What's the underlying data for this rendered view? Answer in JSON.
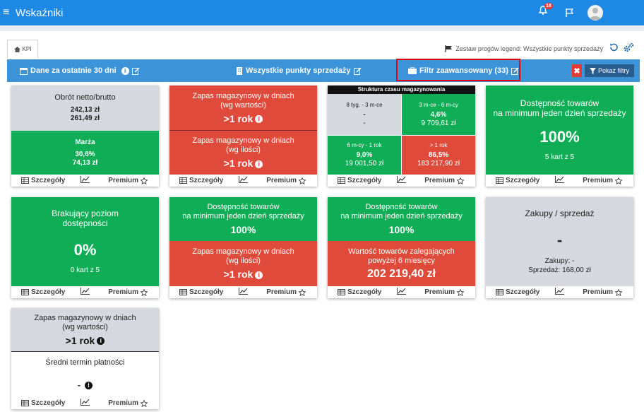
{
  "app": {
    "title": "Wskaźniki",
    "notifications": "18"
  },
  "tab": {
    "label": "KPI"
  },
  "legend": {
    "text": "Zestaw progów legend: Wszystkie punkty sprzedaży"
  },
  "filterbar": {
    "date": "Dane za ostatnie 30 dni",
    "points": "Wszystkie punkty sprzedaży",
    "advanced": "Filtr zaawansowany (33)",
    "show_filters": "Pokaż filtry",
    "close": "✖"
  },
  "footer": {
    "details": "Szczegóły",
    "premium": "Premium"
  },
  "cards": {
    "turnover": {
      "title": "Obrót netto/brutto",
      "v1": "242,13 zł",
      "v2": "261,49 zł",
      "margin_title": "Marża",
      "margin_pct": "30,6%",
      "margin_val": "74,13 zł"
    },
    "stock_days": {
      "t1": "Zapas magazynowy w dniach",
      "t1b": "(wg wartości)",
      "v1": ">1 rok",
      "t2": "Zapas magazynowy w dniach",
      "t2b": "(wg ilości)",
      "v2": ">1 rok"
    },
    "structure": {
      "title": "Struktura czasu magazynowania",
      "q1": {
        "label": "8 tyg. - 3 m-ce",
        "v": "-",
        "s": "-"
      },
      "q2": {
        "label": "3 m-ce - 6 m-cy",
        "v": "4,6%",
        "s": "9 709,61 zł"
      },
      "q3": {
        "label": "6 m-cy - 1 rok",
        "v": "9,0%",
        "s": "19 001,50 zł"
      },
      "q4": {
        "label": "> 1 rok",
        "v": "86,5%",
        "s": "183 217,90 zł"
      }
    },
    "availability": {
      "t1": "Dostępność towarów",
      "t2": "na minimum jeden dzień sprzedaży",
      "value": "100%",
      "sub": "5 kart z 5"
    },
    "missing": {
      "t1": "Brakujący poziom",
      "t2": "dostępności",
      "value": "0%",
      "sub": "0 kart z 5"
    },
    "avail_stock": {
      "t1": "Dostępność towarów",
      "t2": "na minimum jeden dzień sprzedaży",
      "v1": "100%",
      "t3": "Zapas magazynowy w dniach",
      "t4": "(wg ilości)",
      "v2": ">1 rok"
    },
    "avail_stale": {
      "t1": "Dostępność towarów",
      "t2": "na minimum jeden dzień sprzedaży",
      "v1": "100%",
      "t3": "Wartość towarów zalegających",
      "t4": "powyżej 6 miesięcy",
      "v2": "202 219,40 zł"
    },
    "purchases": {
      "title": "Zakupy / sprzedaż",
      "value": "-",
      "s1": "Zakupy: -",
      "s2": "Sprzedaż: 168,00 zł"
    },
    "stock_payment": {
      "t1": "Zapas magazynowy w dniach",
      "t1b": "(wg wartości)",
      "v1": ">1 rok",
      "t2": "Średni termin płatności",
      "v2": "-"
    }
  },
  "colors": {
    "blue": "#1e88e5",
    "green": "#0fad55",
    "red": "#e04a3a",
    "grey": "#d5d9df"
  }
}
